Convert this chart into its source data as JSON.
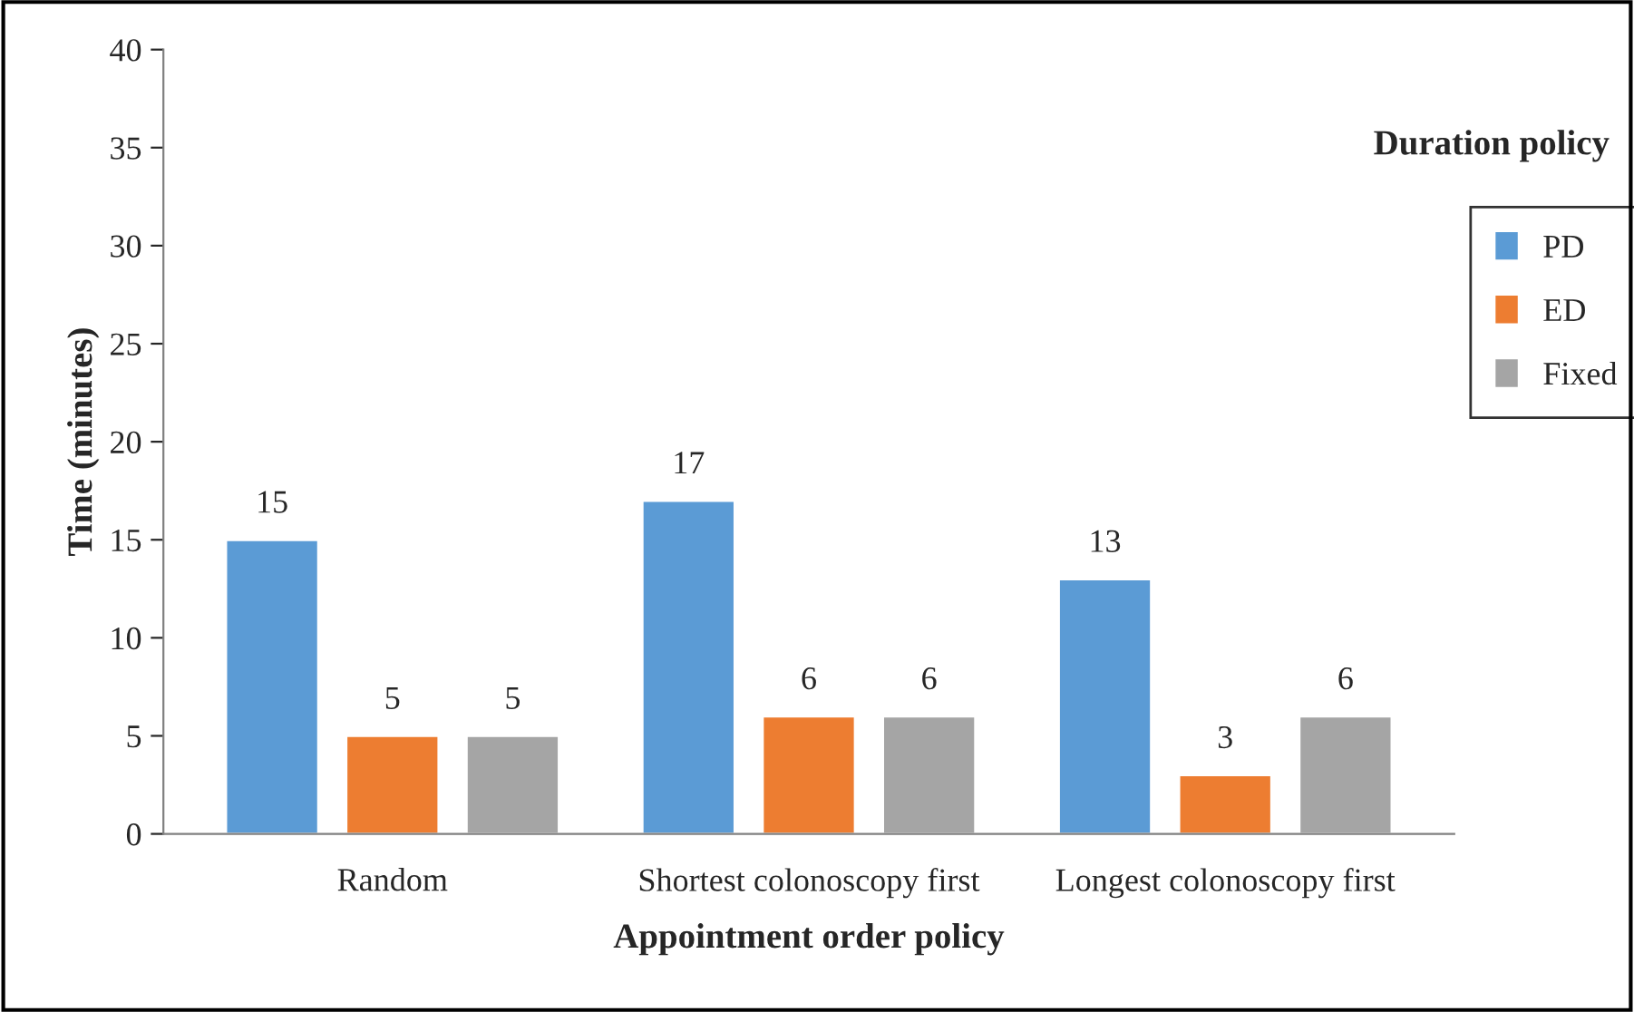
{
  "chart_data": {
    "type": "bar",
    "categories": [
      "Random",
      "Shortest colonoscopy first",
      "Longest colonoscopy first"
    ],
    "series": [
      {
        "name": "PD",
        "color": "#5b9bd5",
        "values": [
          15,
          17,
          13
        ]
      },
      {
        "name": "ED",
        "color": "#ed7d31",
        "values": [
          5,
          6,
          3
        ]
      },
      {
        "name": "Fixed",
        "color": "#a5a5a5",
        "values": [
          5,
          6,
          6
        ]
      }
    ],
    "xlabel": "Appointment order policy",
    "ylabel": "Time (minutes)",
    "legend_title": "Duration policy",
    "ylim": [
      0,
      40
    ],
    "yticks": [
      0,
      5,
      10,
      15,
      20,
      25,
      30,
      35,
      40
    ],
    "data_labels": true,
    "legend": "right",
    "grid": false
  }
}
